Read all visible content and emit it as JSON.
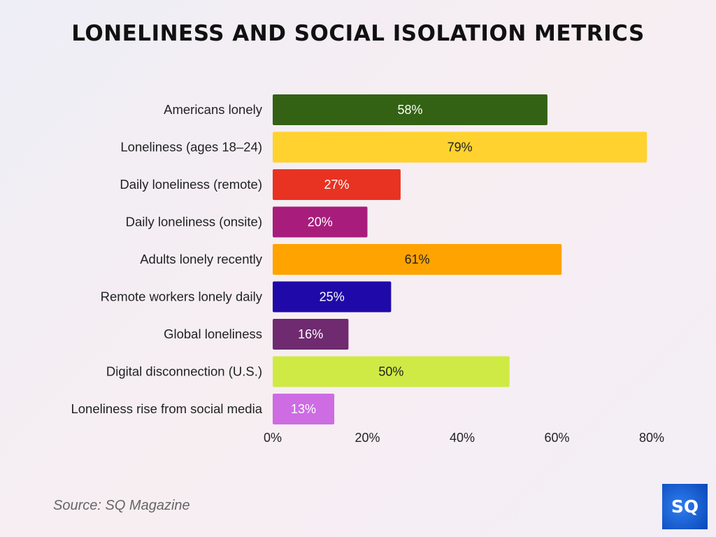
{
  "chart_data": {
    "type": "bar",
    "orientation": "horizontal",
    "title": "LONELINESS AND SOCIAL ISOLATION METRICS",
    "categories": [
      "Americans lonely",
      "Loneliness (ages 18–24)",
      "Daily loneliness (remote)",
      "Daily loneliness (onsite)",
      "Adults lonely recently",
      "Remote workers lonely daily",
      "Global loneliness",
      "Digital disconnection (U.S.)",
      "Loneliness rise from social media"
    ],
    "values": [
      58,
      79,
      27,
      20,
      61,
      25,
      16,
      50,
      13
    ],
    "data_labels": [
      "58%",
      "79%",
      "27%",
      "20%",
      "61%",
      "25%",
      "16%",
      "50%",
      "13%"
    ],
    "colors": [
      "#336214",
      "#ffd22f",
      "#e83323",
      "#a81d7b",
      "#ffa300",
      "#1f0aa9",
      "#6f2a70",
      "#cfea45",
      "#cd6ce3"
    ],
    "label_colors": [
      "#ffffff",
      "#222222",
      "#ffffff",
      "#ffffff",
      "#222222",
      "#ffffff",
      "#ffffff",
      "#222222",
      "#ffffff"
    ],
    "xlim": [
      0,
      80
    ],
    "xticks": [
      "0%",
      "20%",
      "40%",
      "60%",
      "80%"
    ],
    "grid": false,
    "xlabel": "",
    "ylabel": ""
  },
  "source": "Source: SQ Magazine",
  "logo": "SQ"
}
